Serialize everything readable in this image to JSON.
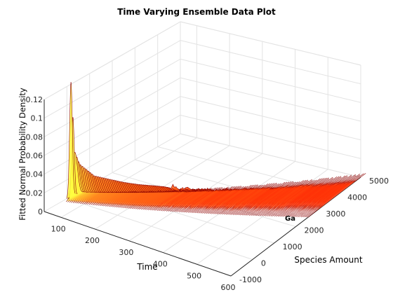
{
  "chart_data": {
    "type": "surface3d",
    "title": "Time Varying Ensemble Data Plot",
    "xlabel": "Time",
    "ylabel": "Species Amount",
    "zlabel": "Fitted Normal Probability Density",
    "x_ticks": [
      "100",
      "200",
      "300",
      "400",
      "500",
      "600"
    ],
    "y_ticks": [
      "-1000",
      "0",
      "1000",
      "2000",
      "3000",
      "4000",
      "5000"
    ],
    "z_ticks": [
      "0",
      "0.02",
      "0.04",
      "0.06",
      "0.08",
      "0.1",
      "0.12"
    ],
    "xlim": [
      50,
      600
    ],
    "ylim": [
      -1000,
      5000
    ],
    "zlim": [
      0,
      0.12
    ],
    "grid": true,
    "colormap": "autumn",
    "colors": {
      "low": "#ff1a00",
      "mid": "#ff9a20",
      "high": "#ffff40",
      "edge": "#8b0000"
    },
    "annotation": "Ga",
    "series": [
      {
        "time": [
          52,
          60,
          70,
          80,
          100,
          130,
          160,
          190,
          220,
          240,
          250,
          260,
          275,
          290,
          310,
          330,
          350,
          380,
          410,
          440,
          470,
          500,
          530,
          560,
          590,
          600
        ],
        "mean": [
          150,
          200,
          250,
          320,
          450,
          650,
          850,
          1050,
          1250,
          1390,
          1460,
          1530,
          1630,
          1740,
          1880,
          2020,
          2160,
          2370,
          2580,
          2790,
          3000,
          3210,
          3420,
          3630,
          3840,
          3900
        ],
        "peak_density": [
          0.123,
          0.048,
          0.036,
          0.032,
          0.024,
          0.021,
          0.018,
          0.016,
          0.015,
          0.014,
          0.013,
          0.012,
          0.011,
          0.01,
          0.01,
          0.009,
          0.009,
          0.008,
          0.008,
          0.007,
          0.007,
          0.007,
          0.006,
          0.006,
          0.006,
          0.006
        ]
      }
    ]
  }
}
